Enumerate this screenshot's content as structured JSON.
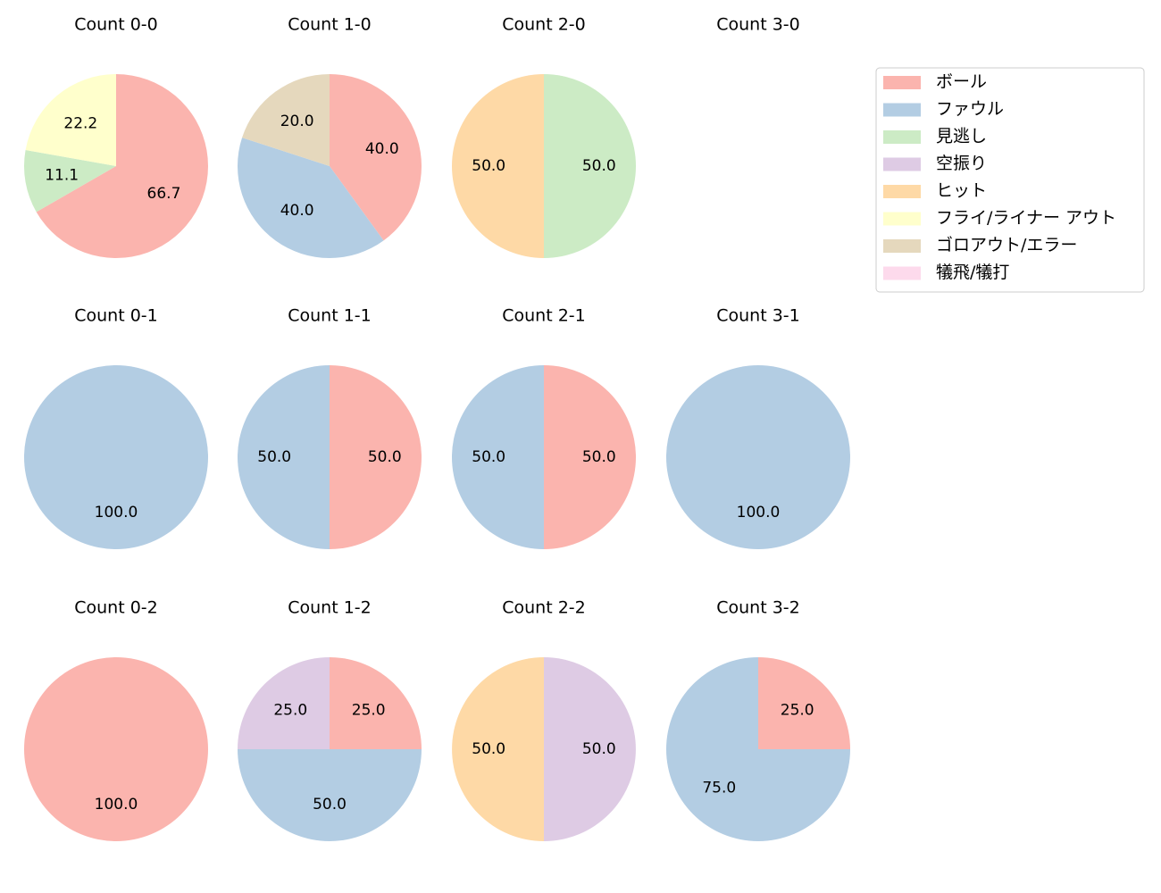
{
  "chart_data": [
    {
      "type": "pie",
      "title": "Count 0-0",
      "categories": [
        "ボール",
        "見逃し",
        "フライ/ライナー アウト"
      ],
      "values": [
        66.7,
        11.1,
        22.2
      ],
      "colors": [
        "#fbb4ae",
        "#ccebc5",
        "#ffffcc"
      ]
    },
    {
      "type": "pie",
      "title": "Count 1-0",
      "categories": [
        "ボール",
        "ファウル",
        "ゴロアウト/エラー"
      ],
      "values": [
        40,
        40,
        20
      ],
      "value_labels": [
        "40.0",
        "40.0",
        "20.0"
      ],
      "colors": [
        "#fbb4ae",
        "#b3cde3",
        "#e5d8bd"
      ]
    },
    {
      "type": "pie",
      "title": "Count 2-0",
      "categories": [
        "見逃し",
        "ヒット"
      ],
      "values": [
        50,
        50
      ],
      "value_labels": [
        "50.0",
        "50.0"
      ],
      "colors": [
        "#ccebc5",
        "#fed9a6"
      ]
    },
    {
      "type": "pie",
      "title": "Count 3-0",
      "categories": [],
      "values": [],
      "colors": []
    },
    {
      "type": "pie",
      "title": "Count 0-1",
      "categories": [
        "ファウル"
      ],
      "values": [
        100
      ],
      "value_labels": [
        "100.0"
      ],
      "colors": [
        "#b3cde3"
      ]
    },
    {
      "type": "pie",
      "title": "Count 1-1",
      "categories": [
        "ボール",
        "ファウル"
      ],
      "values": [
        50,
        50
      ],
      "value_labels": [
        "50.0",
        "50.0"
      ],
      "colors": [
        "#fbb4ae",
        "#b3cde3"
      ]
    },
    {
      "type": "pie",
      "title": "Count 2-1",
      "categories": [
        "ボール",
        "ファウル"
      ],
      "values": [
        50,
        50
      ],
      "value_labels": [
        "50.0",
        "50.0"
      ],
      "colors": [
        "#fbb4ae",
        "#b3cde3"
      ]
    },
    {
      "type": "pie",
      "title": "Count 3-1",
      "categories": [
        "ファウル"
      ],
      "values": [
        100
      ],
      "value_labels": [
        "100.0"
      ],
      "colors": [
        "#b3cde3"
      ]
    },
    {
      "type": "pie",
      "title": "Count 0-2",
      "categories": [
        "ボール"
      ],
      "values": [
        100
      ],
      "value_labels": [
        "100.0"
      ],
      "colors": [
        "#fbb4ae"
      ]
    },
    {
      "type": "pie",
      "title": "Count 1-2",
      "categories": [
        "ボール",
        "ファウル",
        "空振り"
      ],
      "values": [
        25,
        50,
        25
      ],
      "value_labels": [
        "25.0",
        "50.0",
        "25.0"
      ],
      "colors": [
        "#fbb4ae",
        "#b3cde3",
        "#decbe4"
      ]
    },
    {
      "type": "pie",
      "title": "Count 2-2",
      "categories": [
        "空振り",
        "ヒット"
      ],
      "values": [
        50,
        50
      ],
      "value_labels": [
        "50.0",
        "50.0"
      ],
      "colors": [
        "#decbe4",
        "#fed9a6"
      ]
    },
    {
      "type": "pie",
      "title": "Count 3-2",
      "categories": [
        "ボール",
        "ファウル"
      ],
      "values": [
        25,
        75
      ],
      "value_labels": [
        "25.0",
        "75.0"
      ],
      "colors": [
        "#fbb4ae",
        "#b3cde3"
      ]
    }
  ],
  "legend": {
    "labels": [
      "ボール",
      "ファウル",
      "見逃し",
      "空振り",
      "ヒット",
      "フライ/ライナー アウト",
      "ゴロアウト/エラー",
      "犠飛/犠打"
    ],
    "colors": [
      "#fbb4ae",
      "#b3cde3",
      "#ccebc5",
      "#decbe4",
      "#fed9a6",
      "#ffffcc",
      "#e5d8bd",
      "#fddaec"
    ]
  }
}
